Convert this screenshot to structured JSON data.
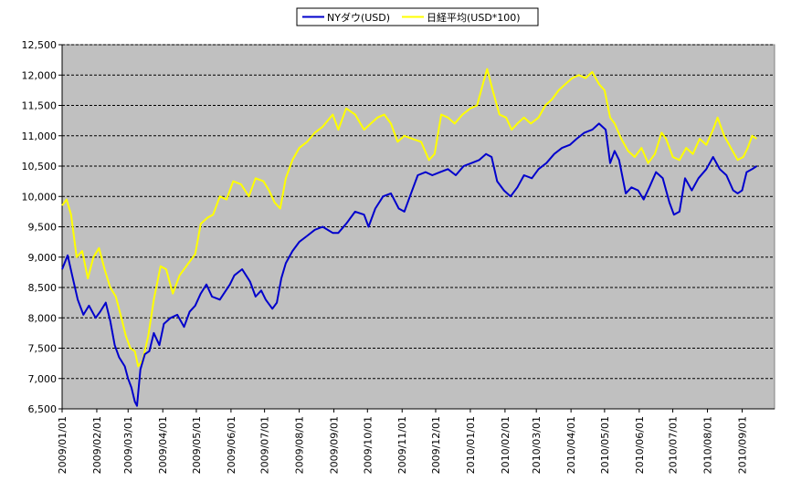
{
  "chart_data": {
    "type": "line",
    "ylim": [
      6500,
      12500
    ],
    "y_ticks": [
      6500,
      7000,
      7500,
      8000,
      8500,
      9000,
      9500,
      10000,
      10500,
      11000,
      11500,
      12000,
      12500
    ],
    "y_tick_labels": [
      "6,500",
      "7,000",
      "7,500",
      "8,000",
      "8,500",
      "9,000",
      "9,500",
      "10,000",
      "10,500",
      "11,000",
      "11,500",
      "12,000",
      "12,500"
    ],
    "x_tick_labels": [
      "2009/01/01",
      "2009/02/01",
      "2009/03/01",
      "2009/04/01",
      "2009/05/01",
      "2009/06/01",
      "2009/07/01",
      "2009/08/01",
      "2009/09/01",
      "2009/10/01",
      "2009/11/01",
      "2009/12/01",
      "2010/01/01",
      "2010/02/01",
      "2010/03/01",
      "2010/04/01",
      "2010/05/01",
      "2010/06/01",
      "2010/07/01",
      "2010/08/01",
      "2010/09/01"
    ],
    "x_range": [
      "2009/01/01",
      "2010/09/30"
    ],
    "grid": true,
    "legend_position": "top-center",
    "plot_background": "#c0c0c0",
    "series": [
      {
        "name": "NYダウ(USD)",
        "color": "#0000cc",
        "points": [
          [
            "2009/01/01",
            8800
          ],
          [
            "2009/01/06",
            9030
          ],
          [
            "2009/01/10",
            8700
          ],
          [
            "2009/01/15",
            8300
          ],
          [
            "2009/01/20",
            8050
          ],
          [
            "2009/01/25",
            8200
          ],
          [
            "2009/01/31",
            8000
          ],
          [
            "2009/02/04",
            8100
          ],
          [
            "2009/02/09",
            8250
          ],
          [
            "2009/02/13",
            7950
          ],
          [
            "2009/02/17",
            7550
          ],
          [
            "2009/02/21",
            7350
          ],
          [
            "2009/02/26",
            7200
          ],
          [
            "2009/03/01",
            7000
          ],
          [
            "2009/03/04",
            6850
          ],
          [
            "2009/03/07",
            6620
          ],
          [
            "2009/03/09",
            6550
          ],
          [
            "2009/03/12",
            7150
          ],
          [
            "2009/03/16",
            7400
          ],
          [
            "2009/03/20",
            7450
          ],
          [
            "2009/03/24",
            7750
          ],
          [
            "2009/03/29",
            7550
          ],
          [
            "2009/04/02",
            7900
          ],
          [
            "2009/04/08",
            8000
          ],
          [
            "2009/04/14",
            8050
          ],
          [
            "2009/04/20",
            7850
          ],
          [
            "2009/04/25",
            8100
          ],
          [
            "2009/04/30",
            8200
          ],
          [
            "2009/05/05",
            8400
          ],
          [
            "2009/05/10",
            8550
          ],
          [
            "2009/05/15",
            8350
          ],
          [
            "2009/05/22",
            8300
          ],
          [
            "2009/05/31",
            8550
          ],
          [
            "2009/06/04",
            8700
          ],
          [
            "2009/06/11",
            8800
          ],
          [
            "2009/06/18",
            8600
          ],
          [
            "2009/06/23",
            8350
          ],
          [
            "2009/06/28",
            8450
          ],
          [
            "2009/07/02",
            8300
          ],
          [
            "2009/07/08",
            8150
          ],
          [
            "2009/07/12",
            8250
          ],
          [
            "2009/07/16",
            8650
          ],
          [
            "2009/07/20",
            8900
          ],
          [
            "2009/07/26",
            9100
          ],
          [
            "2009/08/01",
            9250
          ],
          [
            "2009/08/08",
            9350
          ],
          [
            "2009/08/15",
            9450
          ],
          [
            "2009/08/22",
            9500
          ],
          [
            "2009/08/31",
            9400
          ],
          [
            "2009/09/05",
            9400
          ],
          [
            "2009/09/12",
            9550
          ],
          [
            "2009/09/20",
            9750
          ],
          [
            "2009/09/28",
            9700
          ],
          [
            "2009/10/02",
            9500
          ],
          [
            "2009/10/08",
            9800
          ],
          [
            "2009/10/15",
            10000
          ],
          [
            "2009/10/22",
            10050
          ],
          [
            "2009/10/29",
            9800
          ],
          [
            "2009/11/03",
            9750
          ],
          [
            "2009/11/08",
            10000
          ],
          [
            "2009/11/15",
            10350
          ],
          [
            "2009/11/22",
            10400
          ],
          [
            "2009/11/28",
            10350
          ],
          [
            "2009/12/05",
            10400
          ],
          [
            "2009/12/12",
            10450
          ],
          [
            "2009/12/19",
            10350
          ],
          [
            "2009/12/26",
            10500
          ],
          [
            "2010/01/02",
            10550
          ],
          [
            "2010/01/09",
            10600
          ],
          [
            "2010/01/15",
            10700
          ],
          [
            "2010/01/20",
            10650
          ],
          [
            "2010/01/25",
            10250
          ],
          [
            "2010/01/31",
            10100
          ],
          [
            "2010/02/06",
            10000
          ],
          [
            "2010/02/12",
            10150
          ],
          [
            "2010/02/18",
            10350
          ],
          [
            "2010/02/25",
            10300
          ],
          [
            "2010/03/03",
            10450
          ],
          [
            "2010/03/10",
            10550
          ],
          [
            "2010/03/17",
            10700
          ],
          [
            "2010/03/24",
            10800
          ],
          [
            "2010/03/31",
            10850
          ],
          [
            "2010/04/06",
            10950
          ],
          [
            "2010/04/13",
            11050
          ],
          [
            "2010/04/20",
            11100
          ],
          [
            "2010/04/26",
            11200
          ],
          [
            "2010/05/02",
            11100
          ],
          [
            "2010/05/06",
            10550
          ],
          [
            "2010/05/10",
            10750
          ],
          [
            "2010/05/14",
            10600
          ],
          [
            "2010/05/20",
            10050
          ],
          [
            "2010/05/25",
            10150
          ],
          [
            "2010/05/31",
            10100
          ],
          [
            "2010/06/05",
            9950
          ],
          [
            "2010/06/10",
            10150
          ],
          [
            "2010/06/16",
            10400
          ],
          [
            "2010/06/22",
            10300
          ],
          [
            "2010/06/28",
            9900
          ],
          [
            "2010/07/02",
            9700
          ],
          [
            "2010/07/07",
            9750
          ],
          [
            "2010/07/12",
            10300
          ],
          [
            "2010/07/18",
            10100
          ],
          [
            "2010/07/24",
            10300
          ],
          [
            "2010/07/31",
            10450
          ],
          [
            "2010/08/06",
            10650
          ],
          [
            "2010/08/12",
            10450
          ],
          [
            "2010/08/18",
            10350
          ],
          [
            "2010/08/24",
            10100
          ],
          [
            "2010/08/28",
            10050
          ],
          [
            "2010/09/01",
            10100
          ],
          [
            "2010/09/05",
            10400
          ],
          [
            "2010/09/10",
            10450
          ],
          [
            "2010/09/14",
            10500
          ]
        ]
      },
      {
        "name": "日経平均(USD*100)",
        "color": "#ffff00",
        "points": [
          [
            "2009/01/01",
            9850
          ],
          [
            "2009/01/05",
            9950
          ],
          [
            "2009/01/09",
            9700
          ],
          [
            "2009/01/14",
            9000
          ],
          [
            "2009/01/19",
            9100
          ],
          [
            "2009/01/24",
            8650
          ],
          [
            "2009/01/29",
            9000
          ],
          [
            "2009/02/03",
            9150
          ],
          [
            "2009/02/08",
            8800
          ],
          [
            "2009/02/13",
            8500
          ],
          [
            "2009/02/18",
            8350
          ],
          [
            "2009/02/23",
            8000
          ],
          [
            "2009/02/27",
            7700
          ],
          [
            "2009/03/03",
            7500
          ],
          [
            "2009/03/07",
            7450
          ],
          [
            "2009/03/10",
            7200
          ],
          [
            "2009/03/14",
            7300
          ],
          [
            "2009/03/19",
            7700
          ],
          [
            "2009/03/24",
            8300
          ],
          [
            "2009/03/30",
            8850
          ],
          [
            "2009/04/04",
            8800
          ],
          [
            "2009/04/10",
            8400
          ],
          [
            "2009/04/16",
            8700
          ],
          [
            "2009/04/24",
            8900
          ],
          [
            "2009/04/30",
            9050
          ],
          [
            "2009/05/05",
            9550
          ],
          [
            "2009/05/11",
            9650
          ],
          [
            "2009/05/16",
            9700
          ],
          [
            "2009/05/22",
            10000
          ],
          [
            "2009/05/28",
            9950
          ],
          [
            "2009/06/03",
            10250
          ],
          [
            "2009/06/10",
            10200
          ],
          [
            "2009/06/17",
            10000
          ],
          [
            "2009/06/23",
            10300
          ],
          [
            "2009/06/30",
            10250
          ],
          [
            "2009/07/05",
            10100
          ],
          [
            "2009/07/10",
            9900
          ],
          [
            "2009/07/15",
            9800
          ],
          [
            "2009/07/20",
            10300
          ],
          [
            "2009/07/26",
            10600
          ],
          [
            "2009/08/01",
            10800
          ],
          [
            "2009/08/08",
            10900
          ],
          [
            "2009/08/15",
            11050
          ],
          [
            "2009/08/22",
            11150
          ],
          [
            "2009/08/31",
            11350
          ],
          [
            "2009/09/05",
            11100
          ],
          [
            "2009/09/12",
            11450
          ],
          [
            "2009/09/20",
            11350
          ],
          [
            "2009/09/28",
            11100
          ],
          [
            "2009/10/04",
            11200
          ],
          [
            "2009/10/10",
            11300
          ],
          [
            "2009/10/16",
            11350
          ],
          [
            "2009/10/22",
            11200
          ],
          [
            "2009/10/28",
            10900
          ],
          [
            "2009/11/03",
            11000
          ],
          [
            "2009/11/10",
            10950
          ],
          [
            "2009/11/18",
            10900
          ],
          [
            "2009/11/25",
            10600
          ],
          [
            "2009/11/30",
            10700
          ],
          [
            "2009/12/06",
            11350
          ],
          [
            "2009/12/12",
            11300
          ],
          [
            "2009/12/18",
            11200
          ],
          [
            "2009/12/25",
            11350
          ],
          [
            "2010/01/01",
            11450
          ],
          [
            "2010/01/07",
            11500
          ],
          [
            "2010/01/13",
            11900
          ],
          [
            "2010/01/16",
            12100
          ],
          [
            "2010/01/21",
            11750
          ],
          [
            "2010/01/27",
            11350
          ],
          [
            "2010/02/02",
            11300
          ],
          [
            "2010/02/07",
            11100
          ],
          [
            "2010/02/12",
            11200
          ],
          [
            "2010/02/18",
            11300
          ],
          [
            "2010/02/24",
            11200
          ],
          [
            "2010/03/03",
            11300
          ],
          [
            "2010/03/09",
            11500
          ],
          [
            "2010/03/15",
            11600
          ],
          [
            "2010/03/21",
            11750
          ],
          [
            "2010/03/27",
            11850
          ],
          [
            "2010/04/02",
            11950
          ],
          [
            "2010/04/08",
            12000
          ],
          [
            "2010/04/14",
            11950
          ],
          [
            "2010/04/20",
            12050
          ],
          [
            "2010/04/26",
            11850
          ],
          [
            "2010/05/01",
            11750
          ],
          [
            "2010/05/06",
            11300
          ],
          [
            "2010/05/10",
            11200
          ],
          [
            "2010/05/16",
            10950
          ],
          [
            "2010/05/22",
            10750
          ],
          [
            "2010/05/28",
            10650
          ],
          [
            "2010/06/03",
            10800
          ],
          [
            "2010/06/09",
            10550
          ],
          [
            "2010/06/15",
            10700
          ],
          [
            "2010/06/21",
            11050
          ],
          [
            "2010/06/25",
            10950
          ],
          [
            "2010/07/01",
            10650
          ],
          [
            "2010/07/07",
            10600
          ],
          [
            "2010/07/13",
            10800
          ],
          [
            "2010/07/19",
            10700
          ],
          [
            "2010/07/25",
            10950
          ],
          [
            "2010/07/31",
            10850
          ],
          [
            "2010/08/06",
            11100
          ],
          [
            "2010/08/10",
            11300
          ],
          [
            "2010/08/16",
            11000
          ],
          [
            "2010/08/22",
            10800
          ],
          [
            "2010/08/28",
            10600
          ],
          [
            "2010/09/02",
            10650
          ],
          [
            "2010/09/06",
            10800
          ],
          [
            "2010/09/10",
            11000
          ],
          [
            "2010/09/14",
            10950
          ]
        ]
      }
    ]
  }
}
